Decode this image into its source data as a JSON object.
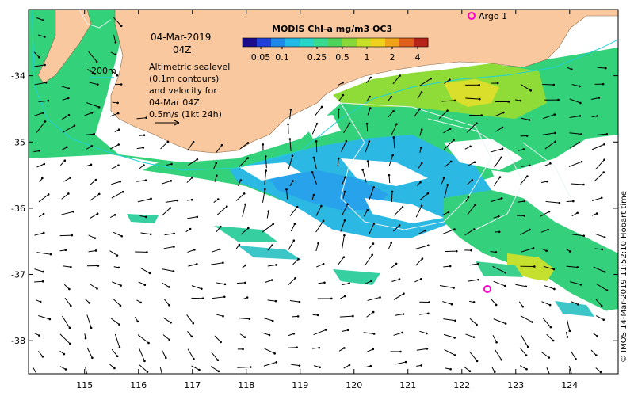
{
  "header": {
    "date": "04-Mar-2019",
    "time": "04Z"
  },
  "colorbar": {
    "title": "MODIS Chl-a mg/m3 OC3",
    "ticks": [
      "0.05",
      "0.1",
      "0.25",
      "0.5",
      "1",
      "2",
      "4"
    ],
    "colors": [
      "#1a0c8c",
      "#1f3fd6",
      "#1e88e8",
      "#22b9e8",
      "#2bd4c8",
      "#39d98f",
      "#4fd35a",
      "#88d83a",
      "#c6e02a",
      "#f0d21e",
      "#f0a21a",
      "#e0601a",
      "#b82418"
    ]
  },
  "annotations": {
    "depth_contour_label": "200m",
    "sealevel_lines": [
      "Altimetric sealevel",
      "(0.1m contours)",
      "and velocity for",
      "04-Mar 04Z",
      "0.5m/s (1kt 24h)"
    ]
  },
  "argo": {
    "label": "Argo 1",
    "color": "#ff00cc"
  },
  "credit": "© IMOS 14-Mar-2019 11:52:10 Hobart time",
  "axes": {
    "x_ticks": [
      "115",
      "116",
      "117",
      "118",
      "119",
      "120",
      "121",
      "122",
      "123",
      "124"
    ],
    "y_ticks": [
      "-34",
      "-35",
      "-36",
      "-37",
      "-38"
    ]
  },
  "colors": {
    "land": "#f9c89f",
    "ocean_green": "#2ed27a",
    "ocean_cyan": "#2ac6e0",
    "ocean_blue": "#2aa6ea",
    "chl_yellow": "#d8e02a",
    "velocity_vectors": "#000000"
  }
}
